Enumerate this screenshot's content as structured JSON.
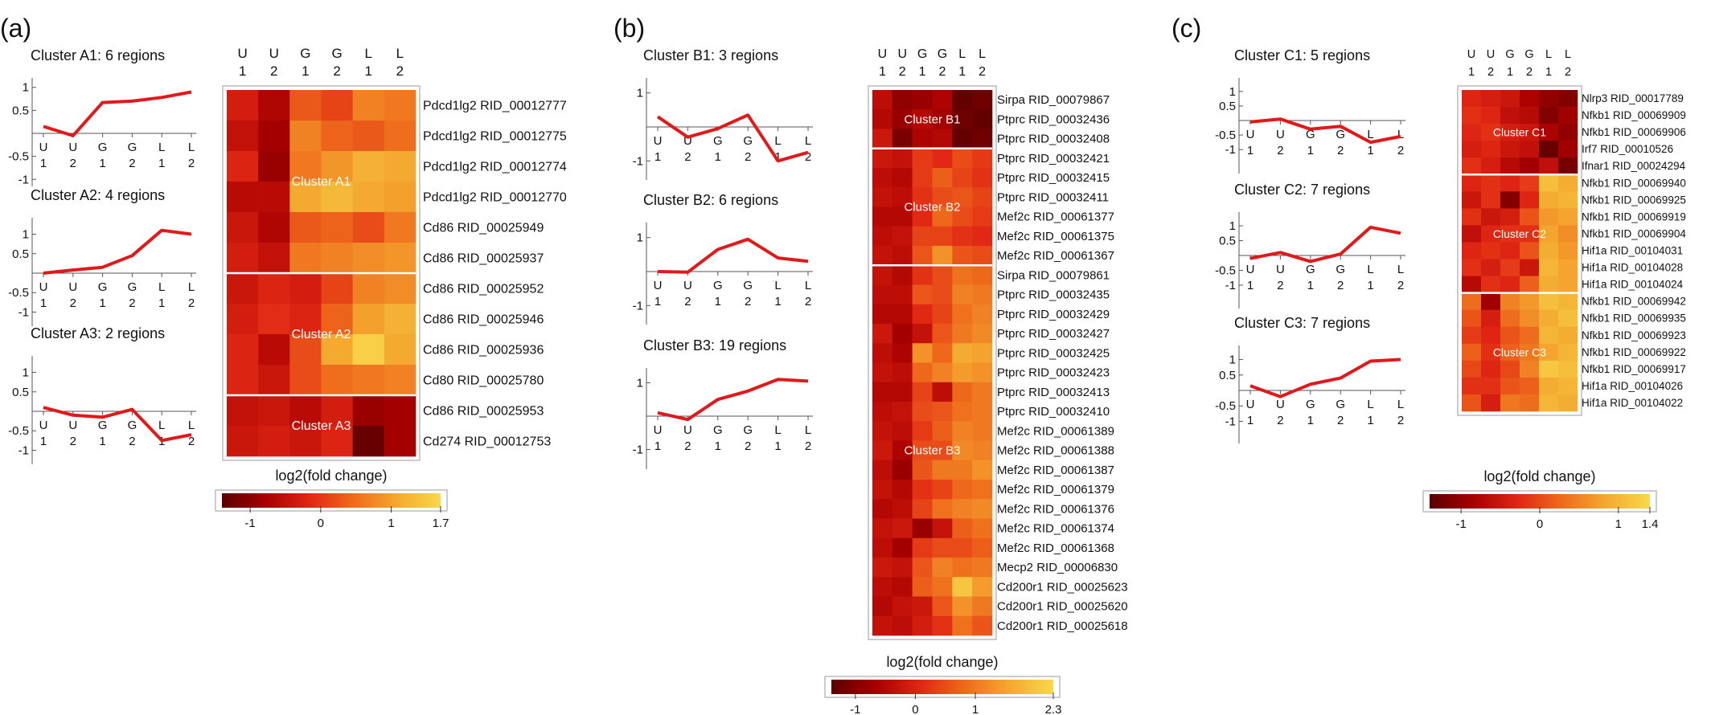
{
  "labels": {
    "condition_letters": [
      "U",
      "U",
      "G",
      "G",
      "L",
      "L"
    ],
    "condition_numbers": [
      "1",
      "2",
      "1",
      "2",
      "1",
      "2"
    ]
  },
  "colors": {
    "line": "#e0191b",
    "axis": "#555555",
    "heatmap_border": "#bbbbbb",
    "colorscale": [
      "#5a0000",
      "#a80000",
      "#e02614",
      "#ee6a1c",
      "#f4a830",
      "#f8d84c"
    ]
  },
  "chart_data": [
    {
      "type": "heatmap",
      "panel_label": "(a)",
      "clusters": [
        {
          "title": "Cluster A1: 6 regions",
          "label": "Cluster A1",
          "ylim": [
            -1.3,
            1.1
          ],
          "yticks": [
            "1",
            "0.5",
            "-0.5",
            "-1"
          ],
          "ytick_values": [
            1,
            0.5,
            -0.5,
            -1
          ],
          "profile": [
            0.15,
            -0.05,
            0.67,
            0.7,
            0.78,
            0.9
          ]
        },
        {
          "title": "Cluster A2: 4 regions",
          "label": "Cluster A2",
          "ylim": [
            -1.3,
            1.3
          ],
          "yticks": [
            "1",
            "0.5",
            "-0.5",
            "-1"
          ],
          "ytick_values": [
            1,
            0.5,
            -0.5,
            -1
          ],
          "profile": [
            0.0,
            0.08,
            0.15,
            0.45,
            1.1,
            1.0
          ]
        },
        {
          "title": "Cluster A3: 2 regions",
          "label": "Cluster A3",
          "ylim": [
            -1.3,
            1.3
          ],
          "yticks": [
            "1",
            "0.5",
            "-0.5",
            "-1"
          ],
          "ytick_values": [
            1,
            0.5,
            -0.5,
            -1
          ],
          "profile": [
            0.1,
            -0.1,
            -0.15,
            0.05,
            -0.75,
            -0.6
          ]
        }
      ],
      "rows": [
        {
          "label": "Pdcd1lg2 RID_00012777",
          "cluster": 0,
          "values": [
            -0.3,
            -0.7,
            0.3,
            0.1,
            0.7,
            0.6
          ]
        },
        {
          "label": "Pdcd1lg2 RID_00012775",
          "cluster": 0,
          "values": [
            -0.5,
            -0.8,
            0.7,
            0.4,
            0.3,
            0.5
          ]
        },
        {
          "label": "Pdcd1lg2 RID_00012774",
          "cluster": 0,
          "values": [
            -0.2,
            -0.9,
            0.6,
            0.9,
            1.2,
            1.1
          ]
        },
        {
          "label": "Pdcd1lg2 RID_00012770",
          "cluster": 0,
          "values": [
            -0.6,
            -0.6,
            1.1,
            1.3,
            1.1,
            1.0
          ]
        },
        {
          "label": "Cd86 RID_00025949",
          "cluster": 0,
          "values": [
            -0.4,
            -0.7,
            0.3,
            0.4,
            0.2,
            0.6
          ]
        },
        {
          "label": "Cd86 RID_00025937",
          "cluster": 0,
          "values": [
            -0.3,
            -0.5,
            0.6,
            0.7,
            0.8,
            0.9
          ]
        },
        {
          "label": "Cd86 RID_00025952",
          "cluster": 1,
          "values": [
            -0.4,
            -0.2,
            -0.3,
            0.1,
            0.7,
            0.8
          ]
        },
        {
          "label": "Cd86 RID_00025946",
          "cluster": 1,
          "values": [
            -0.3,
            -0.1,
            -0.2,
            0.4,
            1.0,
            1.2
          ]
        },
        {
          "label": "Cd86 RID_00025936",
          "cluster": 1,
          "values": [
            -0.2,
            -0.6,
            0.2,
            1.1,
            1.6,
            1.1
          ]
        },
        {
          "label": "Cd80 RID_00025780",
          "cluster": 1,
          "values": [
            -0.2,
            -0.4,
            0.2,
            0.5,
            0.6,
            0.7
          ]
        },
        {
          "label": "Cd86 RID_00025953",
          "cluster": 2,
          "values": [
            -0.5,
            -0.4,
            -0.6,
            -0.3,
            -0.9,
            -0.8
          ]
        },
        {
          "label": "Cd274 RID_00012753",
          "cluster": 2,
          "values": [
            -0.4,
            -0.3,
            -0.4,
            -0.2,
            -1.3,
            -0.8
          ]
        }
      ],
      "colorbar": {
        "title": "log2(fold change)",
        "min": -1.4,
        "max": 1.7,
        "ticks": [
          "-1",
          "0",
          "1",
          "1.7"
        ],
        "tick_values": [
          -1,
          0,
          1,
          1.7
        ]
      }
    },
    {
      "type": "heatmap",
      "panel_label": "(b)",
      "clusters": [
        {
          "title": "Cluster B1: 3 regions",
          "label": "Cluster B1",
          "ylim": [
            -1.3,
            1.3
          ],
          "yticks": [
            "1",
            "-1"
          ],
          "ytick_values": [
            1,
            -1
          ],
          "profile": [
            0.3,
            -0.3,
            -0.05,
            0.35,
            -1.0,
            -0.75
          ]
        },
        {
          "title": "Cluster B2: 6 regions",
          "label": "Cluster B2",
          "ylim": [
            -1.3,
            1.3
          ],
          "yticks": [
            "1",
            "-1"
          ],
          "ytick_values": [
            1,
            -1
          ],
          "profile": [
            0.0,
            -0.02,
            0.65,
            0.95,
            0.4,
            0.3
          ]
        },
        {
          "title": "Cluster B3: 19 regions",
          "label": "Cluster B3",
          "ylim": [
            -1.3,
            1.3
          ],
          "yticks": [
            "1",
            "-1"
          ],
          "ytick_values": [
            1,
            -1
          ],
          "profile": [
            0.1,
            -0.1,
            0.5,
            0.75,
            1.1,
            1.05
          ]
        }
      ],
      "rows": [
        {
          "label": "Sirpa RID_00079867",
          "cluster": 0,
          "values": [
            -0.4,
            -0.9,
            -0.8,
            -0.6,
            -1.3,
            -1.2
          ]
        },
        {
          "label": "Ptprc RID_00032436",
          "cluster": 0,
          "values": [
            -0.5,
            -0.8,
            -0.5,
            -0.7,
            -1.2,
            -1.3
          ]
        },
        {
          "label": "Ptprc RID_00032408",
          "cluster": 0,
          "values": [
            -0.2,
            -1.1,
            -0.6,
            -0.5,
            -1.3,
            -1.2
          ]
        },
        {
          "label": "Ptprc RID_00032421",
          "cluster": 1,
          "values": [
            -0.2,
            -0.3,
            0.3,
            0.1,
            0.5,
            0.3
          ]
        },
        {
          "label": "Ptprc RID_00032415",
          "cluster": 1,
          "values": [
            -0.4,
            -0.5,
            0.3,
            0.7,
            0.4,
            0.2
          ]
        },
        {
          "label": "Ptprc RID_00032411",
          "cluster": 1,
          "values": [
            -0.3,
            -0.4,
            0.2,
            0.5,
            0.6,
            0.4
          ]
        },
        {
          "label": "Mef2c RID_00061377",
          "cluster": 1,
          "values": [
            -0.5,
            -0.5,
            0.1,
            0.8,
            0.5,
            0.3
          ]
        },
        {
          "label": "Mef2c RID_00061375",
          "cluster": 1,
          "values": [
            -0.4,
            -0.3,
            0.4,
            0.4,
            0.2,
            0.1
          ]
        },
        {
          "label": "Mef2c RID_00061367",
          "cluster": 1,
          "values": [
            -0.3,
            -0.4,
            0.6,
            1.3,
            0.6,
            0.5
          ]
        },
        {
          "label": "Sirpa RID_00079861",
          "cluster": 2,
          "values": [
            -0.3,
            -0.5,
            0.2,
            0.5,
            0.9,
            0.8
          ]
        },
        {
          "label": "Ptprc RID_00032435",
          "cluster": 2,
          "values": [
            -0.4,
            -0.4,
            0.6,
            0.5,
            1.1,
            1.0
          ]
        },
        {
          "label": "Ptprc RID_00032429",
          "cluster": 2,
          "values": [
            -0.5,
            -0.5,
            0.1,
            0.4,
            0.9,
            1.1
          ]
        },
        {
          "label": "Ptprc RID_00032427",
          "cluster": 2,
          "values": [
            -0.2,
            -0.7,
            -0.3,
            0.6,
            1.0,
            1.2
          ]
        },
        {
          "label": "Ptprc RID_00032425",
          "cluster": 2,
          "values": [
            -0.4,
            -0.6,
            1.3,
            0.8,
            1.6,
            1.5
          ]
        },
        {
          "label": "Ptprc RID_00032423",
          "cluster": 2,
          "values": [
            -0.3,
            -0.4,
            0.8,
            1.1,
            1.4,
            1.3
          ]
        },
        {
          "label": "Ptprc RID_00032413",
          "cluster": 2,
          "values": [
            -0.5,
            -0.5,
            0.4,
            -0.4,
            0.8,
            1.0
          ]
        },
        {
          "label": "Ptprc RID_00032410",
          "cluster": 2,
          "values": [
            -0.4,
            -0.3,
            0.5,
            0.6,
            0.9,
            1.0
          ]
        },
        {
          "label": "Mef2c RID_00061389",
          "cluster": 2,
          "values": [
            -0.3,
            -0.4,
            0.3,
            0.7,
            1.1,
            1.0
          ]
        },
        {
          "label": "Mef2c RID_00061388",
          "cluster": 2,
          "values": [
            -0.2,
            -0.6,
            0.5,
            0.5,
            1.2,
            1.1
          ]
        },
        {
          "label": "Mef2c RID_00061387",
          "cluster": 2,
          "values": [
            -0.4,
            -0.8,
            0.6,
            1.0,
            1.0,
            1.3
          ]
        },
        {
          "label": "Mef2c RID_00061379",
          "cluster": 2,
          "values": [
            -0.3,
            -0.5,
            0.2,
            0.4,
            0.8,
            0.9
          ]
        },
        {
          "label": "Mef2c RID_00061376",
          "cluster": 2,
          "values": [
            -0.5,
            -0.4,
            0.4,
            0.9,
            1.1,
            1.2
          ]
        },
        {
          "label": "Mef2c RID_00061374",
          "cluster": 2,
          "values": [
            -0.3,
            -0.2,
            -0.8,
            -0.3,
            0.7,
            0.9
          ]
        },
        {
          "label": "Mef2c RID_00061368",
          "cluster": 2,
          "values": [
            -0.4,
            -0.7,
            0.3,
            0.5,
            0.5,
            0.7
          ]
        },
        {
          "label": "Mecp2 RID_00006830",
          "cluster": 2,
          "values": [
            -0.2,
            -0.3,
            0.6,
            1.1,
            0.9,
            1.0
          ]
        },
        {
          "label": "Cd200r1 RID_00025623",
          "cluster": 2,
          "values": [
            -0.4,
            -0.5,
            0.7,
            0.9,
            2.0,
            1.4
          ]
        },
        {
          "label": "Cd200r1 RID_00025620",
          "cluster": 2,
          "values": [
            -0.5,
            -0.3,
            -0.2,
            0.6,
            1.3,
            1.0
          ]
        },
        {
          "label": "Cd200r1 RID_00025618",
          "cluster": 2,
          "values": [
            -0.3,
            -0.4,
            -0.1,
            0.2,
            0.9,
            0.6
          ]
        }
      ],
      "colorbar": {
        "title": "log2(fold change)",
        "min": -1.4,
        "max": 2.3,
        "ticks": [
          "-1",
          "0",
          "1",
          "2.3"
        ],
        "tick_values": [
          -1,
          0,
          1,
          2.3
        ]
      }
    },
    {
      "type": "heatmap",
      "panel_label": "(c)",
      "clusters": [
        {
          "title": "Cluster C1: 5 regions",
          "label": "Cluster C1",
          "ylim": [
            -1.3,
            1.3
          ],
          "yticks": [
            "1",
            "0.5",
            "-0.5",
            "-1"
          ],
          "ytick_values": [
            1,
            0.5,
            -0.5,
            -1
          ],
          "profile": [
            -0.05,
            0.05,
            -0.3,
            -0.2,
            -0.75,
            -0.55
          ]
        },
        {
          "title": "Cluster C2: 7 regions",
          "label": "Cluster C2",
          "ylim": [
            -1.3,
            1.3
          ],
          "yticks": [
            "1",
            "0.5",
            "-0.5",
            "-1"
          ],
          "ytick_values": [
            1,
            0.5,
            -0.5,
            -1
          ],
          "profile": [
            -0.1,
            0.1,
            -0.2,
            0.05,
            0.95,
            0.75
          ]
        },
        {
          "title": "Cluster C3: 7 regions",
          "label": "Cluster C3",
          "ylim": [
            -1.3,
            1.3
          ],
          "yticks": [
            "1",
            "0.5",
            "-0.5",
            "-1"
          ],
          "ytick_values": [
            1,
            0.5,
            -0.5,
            -1
          ],
          "profile": [
            0.15,
            -0.2,
            0.2,
            0.4,
            0.95,
            1.0
          ]
        }
      ],
      "rows": [
        {
          "label": "Nlrp3 RID_00017789",
          "cluster": 0,
          "values": [
            -0.3,
            -0.4,
            -0.5,
            -0.8,
            -1.0,
            -1.1
          ]
        },
        {
          "label": "Nfkb1 RID_00069909",
          "cluster": 0,
          "values": [
            -0.2,
            -0.3,
            -0.6,
            -0.7,
            -1.1,
            -0.9
          ]
        },
        {
          "label": "Nfkb1 RID_00069906",
          "cluster": 0,
          "values": [
            -0.3,
            -0.2,
            -0.4,
            -0.5,
            -0.8,
            -1.0
          ]
        },
        {
          "label": "Irf7 RID_00010526",
          "cluster": 0,
          "values": [
            -0.4,
            -0.3,
            -0.5,
            -0.6,
            -1.3,
            -0.9
          ]
        },
        {
          "label": "Ifnar1 RID_00024294",
          "cluster": 0,
          "values": [
            -0.2,
            -0.4,
            -0.7,
            -0.9,
            -0.6,
            -1.2
          ]
        },
        {
          "label": "Nfkb1 RID_00069940",
          "cluster": 1,
          "values": [
            -0.3,
            -0.2,
            -0.3,
            -0.1,
            1.1,
            0.9
          ]
        },
        {
          "label": "Nfkb1 RID_00069925",
          "cluster": 1,
          "values": [
            -0.5,
            -0.2,
            -1.1,
            -0.3,
            0.9,
            1.0
          ]
        },
        {
          "label": "Nfkb1 RID_00069919",
          "cluster": 1,
          "values": [
            -0.2,
            -0.5,
            -0.4,
            0.1,
            0.7,
            0.8
          ]
        },
        {
          "label": "Nfkb1 RID_00069904",
          "cluster": 1,
          "values": [
            -0.6,
            -0.3,
            -0.2,
            -0.2,
            0.8,
            0.6
          ]
        },
        {
          "label": "Hif1a RID_00104031",
          "cluster": 1,
          "values": [
            -0.3,
            -0.2,
            -0.3,
            0.1,
            0.9,
            0.7
          ]
        },
        {
          "label": "Hif1a RID_00104028",
          "cluster": 1,
          "values": [
            -0.2,
            -0.4,
            -0.1,
            -0.5,
            1.0,
            0.8
          ]
        },
        {
          "label": "Hif1a RID_00104024",
          "cluster": 1,
          "values": [
            -0.7,
            -0.2,
            -0.3,
            0.2,
            0.9,
            0.8
          ]
        },
        {
          "label": "Nfkb1 RID_00069942",
          "cluster": 2,
          "values": [
            0.3,
            -0.9,
            0.5,
            0.7,
            1.1,
            1.0
          ]
        },
        {
          "label": "Nfkb1 RID_00069935",
          "cluster": 2,
          "values": [
            0.1,
            -0.4,
            0.3,
            0.6,
            0.9,
            1.1
          ]
        },
        {
          "label": "Nfkb1 RID_00069923",
          "cluster": 2,
          "values": [
            -0.1,
            -0.3,
            0.1,
            0.3,
            1.0,
            0.9
          ]
        },
        {
          "label": "Nfkb1 RID_00069922",
          "cluster": 2,
          "values": [
            0.2,
            -0.2,
            0.2,
            0.4,
            0.8,
            1.0
          ]
        },
        {
          "label": "Nfkb1 RID_00069917",
          "cluster": 2,
          "values": [
            0.0,
            -0.3,
            0.0,
            0.5,
            1.2,
            1.1
          ]
        },
        {
          "label": "Hif1a RID_00104026",
          "cluster": 2,
          "values": [
            -0.2,
            -0.2,
            0.1,
            0.2,
            0.9,
            1.0
          ]
        },
        {
          "label": "Hif1a RID_00104022",
          "cluster": 2,
          "values": [
            0.1,
            -0.4,
            0.4,
            0.3,
            1.0,
            0.9
          ]
        }
      ],
      "colorbar": {
        "title": "log2(fold change)",
        "min": -1.4,
        "max": 1.4,
        "ticks": [
          "-1",
          "0",
          "1",
          "1.4"
        ],
        "tick_values": [
          -1,
          0,
          1,
          1.4
        ]
      }
    }
  ]
}
